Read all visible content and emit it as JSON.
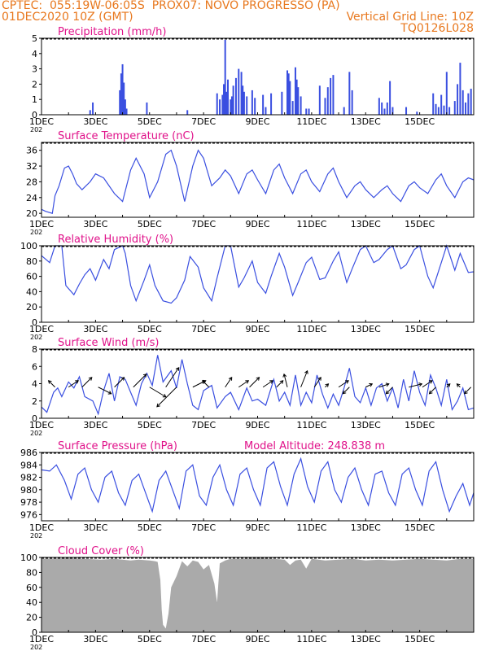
{
  "header": {
    "line1_left": "CPTEC:  055:19W-06:05S  PROX07: NOVO PROGRESSO (PA)",
    "line2_left": "01DEC2020 10Z (GMT)",
    "line2_right": "Vertical Grid Line: 10Z",
    "line3_right": "TQ0126L028",
    "model_altitude": "Model Altitude: 248.838 m"
  },
  "colors": {
    "header": "#e8781e",
    "title": "#e0128a",
    "series": "#3a4fe0",
    "cloud": "#aaaaaa",
    "axis": "#000000"
  },
  "x_ticks": [
    "1DEC",
    "3DEC",
    "5DEC",
    "7DEC",
    "9DEC",
    "11DEC",
    "13DEC",
    "15DEC"
  ],
  "x_sublabel": "202",
  "chart_data": [
    {
      "type": "bar",
      "title": "Precipitation (mm/h)",
      "ylim": [
        0,
        5
      ],
      "yticks": [
        0,
        1,
        2,
        3,
        4,
        5
      ],
      "x": [
        1.8,
        1.9,
        2.9,
        2.95,
        3.0,
        3.05,
        3.1,
        3.15,
        3.9,
        5.4,
        6.5,
        6.6,
        6.7,
        6.75,
        6.8,
        6.85,
        6.9,
        7.0,
        7.05,
        7.1,
        7.2,
        7.3,
        7.4,
        7.45,
        7.5,
        7.6,
        7.8,
        7.9,
        8.2,
        8.3,
        8.5,
        8.9,
        9.1,
        9.15,
        9.2,
        9.3,
        9.4,
        9.45,
        9.5,
        9.6,
        9.8,
        9.9,
        10.3,
        10.5,
        10.6,
        10.7,
        10.8,
        11.2,
        11.4,
        11.5,
        12.5,
        12.6,
        12.7,
        12.8,
        12.9,
        13.0,
        13.5,
        13.9,
        14.5,
        14.6,
        14.7,
        14.8,
        14.9,
        15.0,
        15.1,
        15.3,
        15.4,
        15.5,
        15.6,
        15.7,
        15.8,
        15.9
      ],
      "values": [
        0.3,
        0.8,
        1.6,
        2.7,
        3.3,
        2.1,
        1.0,
        0.4,
        0.8,
        0.3,
        1.4,
        1.0,
        1.3,
        2.0,
        4.9,
        1.5,
        2.3,
        1.0,
        1.2,
        1.9,
        2.4,
        3.0,
        2.8,
        1.9,
        1.5,
        1.2,
        1.6,
        1.1,
        1.3,
        0.5,
        1.4,
        1.5,
        2.9,
        2.7,
        2.2,
        0.9,
        3.1,
        2.3,
        1.8,
        1.2,
        0.4,
        0.4,
        1.9,
        1.1,
        1.8,
        2.4,
        2.6,
        0.5,
        2.8,
        1.6,
        1.1,
        0.8,
        0.4,
        0.8,
        2.2,
        0.5,
        0.5,
        0.2,
        1.4,
        0.7,
        0.5,
        1.3,
        0.6,
        2.8,
        0.5,
        0.9,
        2.0,
        3.4,
        1.6,
        0.8,
        1.4,
        1.7
      ]
    },
    {
      "type": "line",
      "title": "Surface Temperature (nC)",
      "ylim": [
        19,
        38
      ],
      "yticks": [
        20,
        24,
        28,
        32,
        36
      ],
      "x": [
        0,
        0.15,
        0.4,
        0.5,
        0.65,
        0.85,
        1.0,
        1.15,
        1.3,
        1.5,
        1.8,
        2.0,
        2.3,
        2.7,
        3.0,
        3.3,
        3.5,
        3.8,
        4.0,
        4.3,
        4.6,
        4.8,
        5.0,
        5.3,
        5.6,
        5.8,
        6.0,
        6.3,
        6.6,
        6.8,
        7.0,
        7.3,
        7.6,
        7.8,
        8.0,
        8.3,
        8.6,
        8.8,
        9.0,
        9.3,
        9.6,
        9.8,
        10.0,
        10.3,
        10.6,
        10.8,
        11.0,
        11.3,
        11.6,
        11.8,
        12.0,
        12.3,
        12.6,
        12.8,
        13.0,
        13.3,
        13.6,
        13.8,
        14.0,
        14.3,
        14.6,
        14.8,
        15.0,
        15.3,
        15.6,
        15.8,
        16.0
      ],
      "values": [
        21,
        20.5,
        20,
        24.5,
        27,
        31.5,
        32,
        30,
        27.5,
        26,
        28,
        30,
        29,
        25,
        23,
        31,
        34,
        30,
        24,
        28,
        35,
        36,
        32,
        23,
        32,
        36,
        34,
        27,
        29,
        31,
        29.5,
        25,
        30,
        31,
        28.5,
        25,
        31,
        32.5,
        29,
        25,
        30,
        31,
        28,
        25.5,
        30,
        31.5,
        28,
        24,
        27,
        28,
        26,
        24,
        26,
        27,
        25,
        23,
        27,
        28,
        26.5,
        25,
        28.5,
        30,
        27,
        24,
        28,
        29,
        28.5
      ]
    },
    {
      "type": "line",
      "title": "Relative Humidity (%)",
      "ylim": [
        0,
        100
      ],
      "yticks": [
        0,
        20,
        40,
        60,
        80,
        100
      ],
      "x": [
        0,
        0.3,
        0.5,
        0.75,
        0.9,
        1.2,
        1.4,
        1.6,
        1.8,
        2.0,
        2.3,
        2.5,
        2.7,
        3.0,
        3.1,
        3.3,
        3.5,
        3.8,
        4.0,
        4.2,
        4.5,
        4.8,
        5.0,
        5.3,
        5.5,
        5.8,
        6.0,
        6.3,
        6.5,
        6.8,
        7.0,
        7.3,
        7.5,
        7.8,
        8.0,
        8.3,
        8.5,
        8.8,
        9.0,
        9.3,
        9.5,
        9.8,
        10.0,
        10.3,
        10.5,
        10.8,
        11.0,
        11.3,
        11.5,
        11.8,
        12.0,
        12.3,
        12.5,
        12.8,
        13.0,
        13.3,
        13.5,
        13.8,
        14.0,
        14.3,
        14.5,
        14.8,
        15.0,
        15.3,
        15.5,
        15.8,
        16.0
      ],
      "values": [
        87,
        78,
        100,
        100,
        48,
        36,
        50,
        62,
        70,
        55,
        82,
        70,
        95,
        100,
        90,
        48,
        28,
        55,
        75,
        48,
        28,
        25,
        32,
        55,
        86,
        72,
        45,
        28,
        58,
        100,
        100,
        46,
        58,
        80,
        52,
        38,
        60,
        90,
        72,
        35,
        52,
        78,
        85,
        56,
        58,
        80,
        92,
        52,
        70,
        95,
        100,
        78,
        82,
        95,
        100,
        70,
        75,
        95,
        100,
        60,
        45,
        78,
        100,
        68,
        90,
        65,
        66
      ]
    },
    {
      "type": "line",
      "title": "Surface Wind (m/s)",
      "ylim": [
        0,
        8
      ],
      "yticks": [
        0,
        2,
        4,
        6,
        8
      ],
      "x": [
        0,
        0.2,
        0.45,
        0.6,
        0.75,
        1.0,
        1.2,
        1.4,
        1.6,
        1.9,
        2.1,
        2.3,
        2.5,
        2.7,
        2.9,
        3.1,
        3.3,
        3.5,
        3.7,
        3.9,
        4.1,
        4.3,
        4.5,
        4.8,
        5.0,
        5.2,
        5.4,
        5.6,
        5.8,
        6.0,
        6.3,
        6.5,
        6.8,
        7.0,
        7.3,
        7.6,
        7.8,
        8.0,
        8.3,
        8.6,
        8.8,
        9.0,
        9.2,
        9.4,
        9.6,
        9.8,
        10.0,
        10.2,
        10.4,
        10.6,
        10.8,
        11.0,
        11.2,
        11.4,
        11.6,
        11.8,
        12.0,
        12.2,
        12.4,
        12.6,
        12.8,
        13.0,
        13.2,
        13.4,
        13.6,
        13.8,
        14.0,
        14.2,
        14.4,
        14.6,
        14.8,
        15.0,
        15.2,
        15.4,
        15.6,
        15.8,
        16.0
      ],
      "values": [
        1.3,
        0.7,
        3.0,
        3.5,
        2.5,
        4.2,
        3.5,
        4.8,
        2.5,
        2.0,
        0.5,
        3.2,
        5.2,
        2.0,
        4.8,
        4.5,
        3.0,
        1.5,
        4.0,
        5.2,
        3.8,
        7.3,
        4.2,
        5.5,
        3.5,
        6.8,
        4.0,
        1.5,
        1.0,
        3.2,
        3.8,
        1.2,
        2.5,
        3.0,
        1.0,
        3.5,
        2.0,
        2.2,
        1.5,
        4.5,
        2.0,
        3.0,
        1.5,
        5.0,
        1.5,
        3.0,
        1.8,
        5.0,
        2.8,
        1.2,
        2.8,
        1.5,
        3.5,
        5.8,
        2.5,
        1.8,
        3.5,
        1.5,
        3.5,
        4.0,
        2.0,
        3.5,
        1.2,
        4.5,
        2.0,
        5.5,
        3.0,
        1.5,
        5.0,
        3.5,
        1.5,
        4.5,
        1.0,
        2.0,
        3.5,
        1.0,
        1.2
      ],
      "vectors": {
        "x": [
          0.5,
          1.0,
          1.5,
          2.1,
          2.7,
          3.4,
          4.0,
          4.6,
          5.0,
          5.6,
          6.2,
          6.8,
          7.3,
          7.7,
          8.2,
          8.7,
          9.1,
          9.6,
          10.1,
          10.5,
          11.0,
          11.4,
          12.0,
          12.5,
          13.0,
          13.6,
          14.1,
          14.6,
          15.0,
          15.5,
          15.9
        ],
        "u": [
          -0.2,
          0.3,
          0.3,
          0.4,
          0.3,
          0.4,
          0.5,
          0.4,
          -0.6,
          0.4,
          -0.2,
          0.2,
          0.3,
          0.3,
          0.3,
          0.2,
          -0.1,
          0.2,
          0.2,
          0.1,
          0.3,
          -0.2,
          0.2,
          0.3,
          -0.2,
          0.4,
          0.3,
          -0.2,
          0.1,
          -0.1,
          -0.2
        ],
        "v": [
          0.2,
          0.2,
          0.3,
          -0.2,
          0.3,
          0.4,
          -0.3,
          0.6,
          -0.6,
          0.2,
          0.2,
          0.3,
          0.2,
          0.3,
          0.2,
          0.2,
          0.4,
          0.5,
          0.3,
          0.1,
          0.2,
          -0.2,
          0.1,
          0.1,
          -0.2,
          0.1,
          0.2,
          -0.2,
          0.1,
          0.1,
          -0.2
        ]
      }
    },
    {
      "type": "line",
      "title": "Surface Pressure (hPa)",
      "ylim": [
        975,
        986
      ],
      "yticks": [
        976,
        978,
        980,
        982,
        984,
        986
      ],
      "x": [
        0,
        0.3,
        0.55,
        0.85,
        1.1,
        1.35,
        1.6,
        1.85,
        2.1,
        2.35,
        2.6,
        2.85,
        3.1,
        3.35,
        3.6,
        3.85,
        4.1,
        4.35,
        4.6,
        4.85,
        5.1,
        5.35,
        5.6,
        5.85,
        6.1,
        6.35,
        6.6,
        6.85,
        7.1,
        7.35,
        7.6,
        7.85,
        8.1,
        8.35,
        8.6,
        8.85,
        9.1,
        9.35,
        9.6,
        9.85,
        10.1,
        10.35,
        10.6,
        10.85,
        11.1,
        11.35,
        11.6,
        11.85,
        12.1,
        12.35,
        12.6,
        12.85,
        13.1,
        13.35,
        13.6,
        13.85,
        14.1,
        14.35,
        14.6,
        14.85,
        15.1,
        15.35,
        15.6,
        15.85,
        16.0
      ],
      "values": [
        983.2,
        983.0,
        984.0,
        981.5,
        978.5,
        982.5,
        983.5,
        980.0,
        978.0,
        982.0,
        983.0,
        979.5,
        977.5,
        981.5,
        982.5,
        979.5,
        976.5,
        981.5,
        983.0,
        980.0,
        977.0,
        983.0,
        984.0,
        979.0,
        977.5,
        982.0,
        984.0,
        980.0,
        977.5,
        982.5,
        983.5,
        980.0,
        977.5,
        983.5,
        984.5,
        980.5,
        977.5,
        982.5,
        985.0,
        980.5,
        978.0,
        983.0,
        984.5,
        980.0,
        978.0,
        982.0,
        983.5,
        980.0,
        977.5,
        982.5,
        983.0,
        979.5,
        977.5,
        982.5,
        983.5,
        980.0,
        977.5,
        983.0,
        984.5,
        980.0,
        976.5,
        979.0,
        981.0,
        977.5,
        979.5
      ]
    },
    {
      "type": "area",
      "title": "Cloud Cover (%)",
      "ylim": [
        0,
        100
      ],
      "yticks": [
        0,
        20,
        40,
        60,
        80,
        100
      ],
      "x": [
        0,
        1.0,
        1.6,
        2.2,
        2.7,
        3.3,
        3.6,
        4.0,
        4.2,
        4.3,
        4.4,
        4.45,
        4.5,
        4.6,
        4.7,
        4.8,
        5.0,
        5.2,
        5.4,
        5.6,
        5.8,
        6.0,
        6.2,
        6.4,
        6.5,
        6.6,
        6.8,
        7.0,
        7.4,
        8.0,
        8.6,
        9.0,
        9.2,
        9.4,
        9.6,
        9.8,
        10.0,
        10.5,
        11.0,
        11.5,
        12.0,
        12.5,
        13.0,
        13.5,
        14.0,
        14.5,
        15.0,
        15.5,
        16.0
      ],
      "values": [
        98,
        99,
        98,
        97,
        98,
        96,
        97,
        96,
        95,
        94,
        70,
        30,
        10,
        5,
        25,
        60,
        75,
        95,
        88,
        96,
        94,
        84,
        90,
        65,
        40,
        92,
        96,
        98,
        98,
        99,
        98,
        97,
        90,
        96,
        97,
        85,
        98,
        96,
        97,
        98,
        96,
        97,
        96,
        97,
        98,
        97,
        96,
        98,
        98
      ]
    }
  ]
}
